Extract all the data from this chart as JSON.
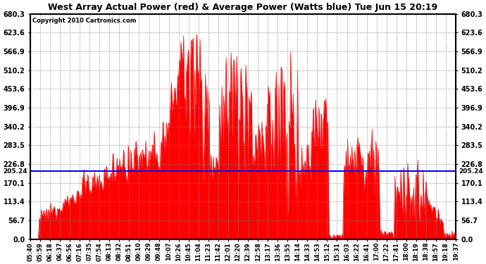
{
  "title": "West Array Actual Power (red) & Average Power (Watts blue) Tue Jun 15 20:19",
  "copyright": "Copyright 2010 Cartronics.com",
  "average_power": 205.24,
  "ymin": 0.0,
  "ymax": 680.3,
  "yticks": [
    0.0,
    56.7,
    113.4,
    170.1,
    226.8,
    283.5,
    340.2,
    396.9,
    453.6,
    510.2,
    566.9,
    623.6,
    680.3
  ],
  "fill_color": "#FF0000",
  "line_color": "#0000FF",
  "avg_label": "205.24",
  "background_color": "#FFFFFF",
  "grid_color": "#AAAAAA",
  "x_labels": [
    "05:40",
    "05:59",
    "06:18",
    "06:37",
    "06:56",
    "07:16",
    "07:35",
    "07:54",
    "08:13",
    "08:32",
    "08:51",
    "09:10",
    "09:29",
    "09:48",
    "10:07",
    "10:26",
    "10:45",
    "11:04",
    "11:23",
    "11:42",
    "12:01",
    "12:20",
    "12:39",
    "12:58",
    "13:17",
    "13:36",
    "13:55",
    "14:14",
    "14:33",
    "14:53",
    "15:12",
    "15:31",
    "16:03",
    "16:22",
    "16:41",
    "17:00",
    "17:22",
    "17:41",
    "18:00",
    "18:19",
    "18:38",
    "18:57",
    "19:18",
    "19:37"
  ]
}
